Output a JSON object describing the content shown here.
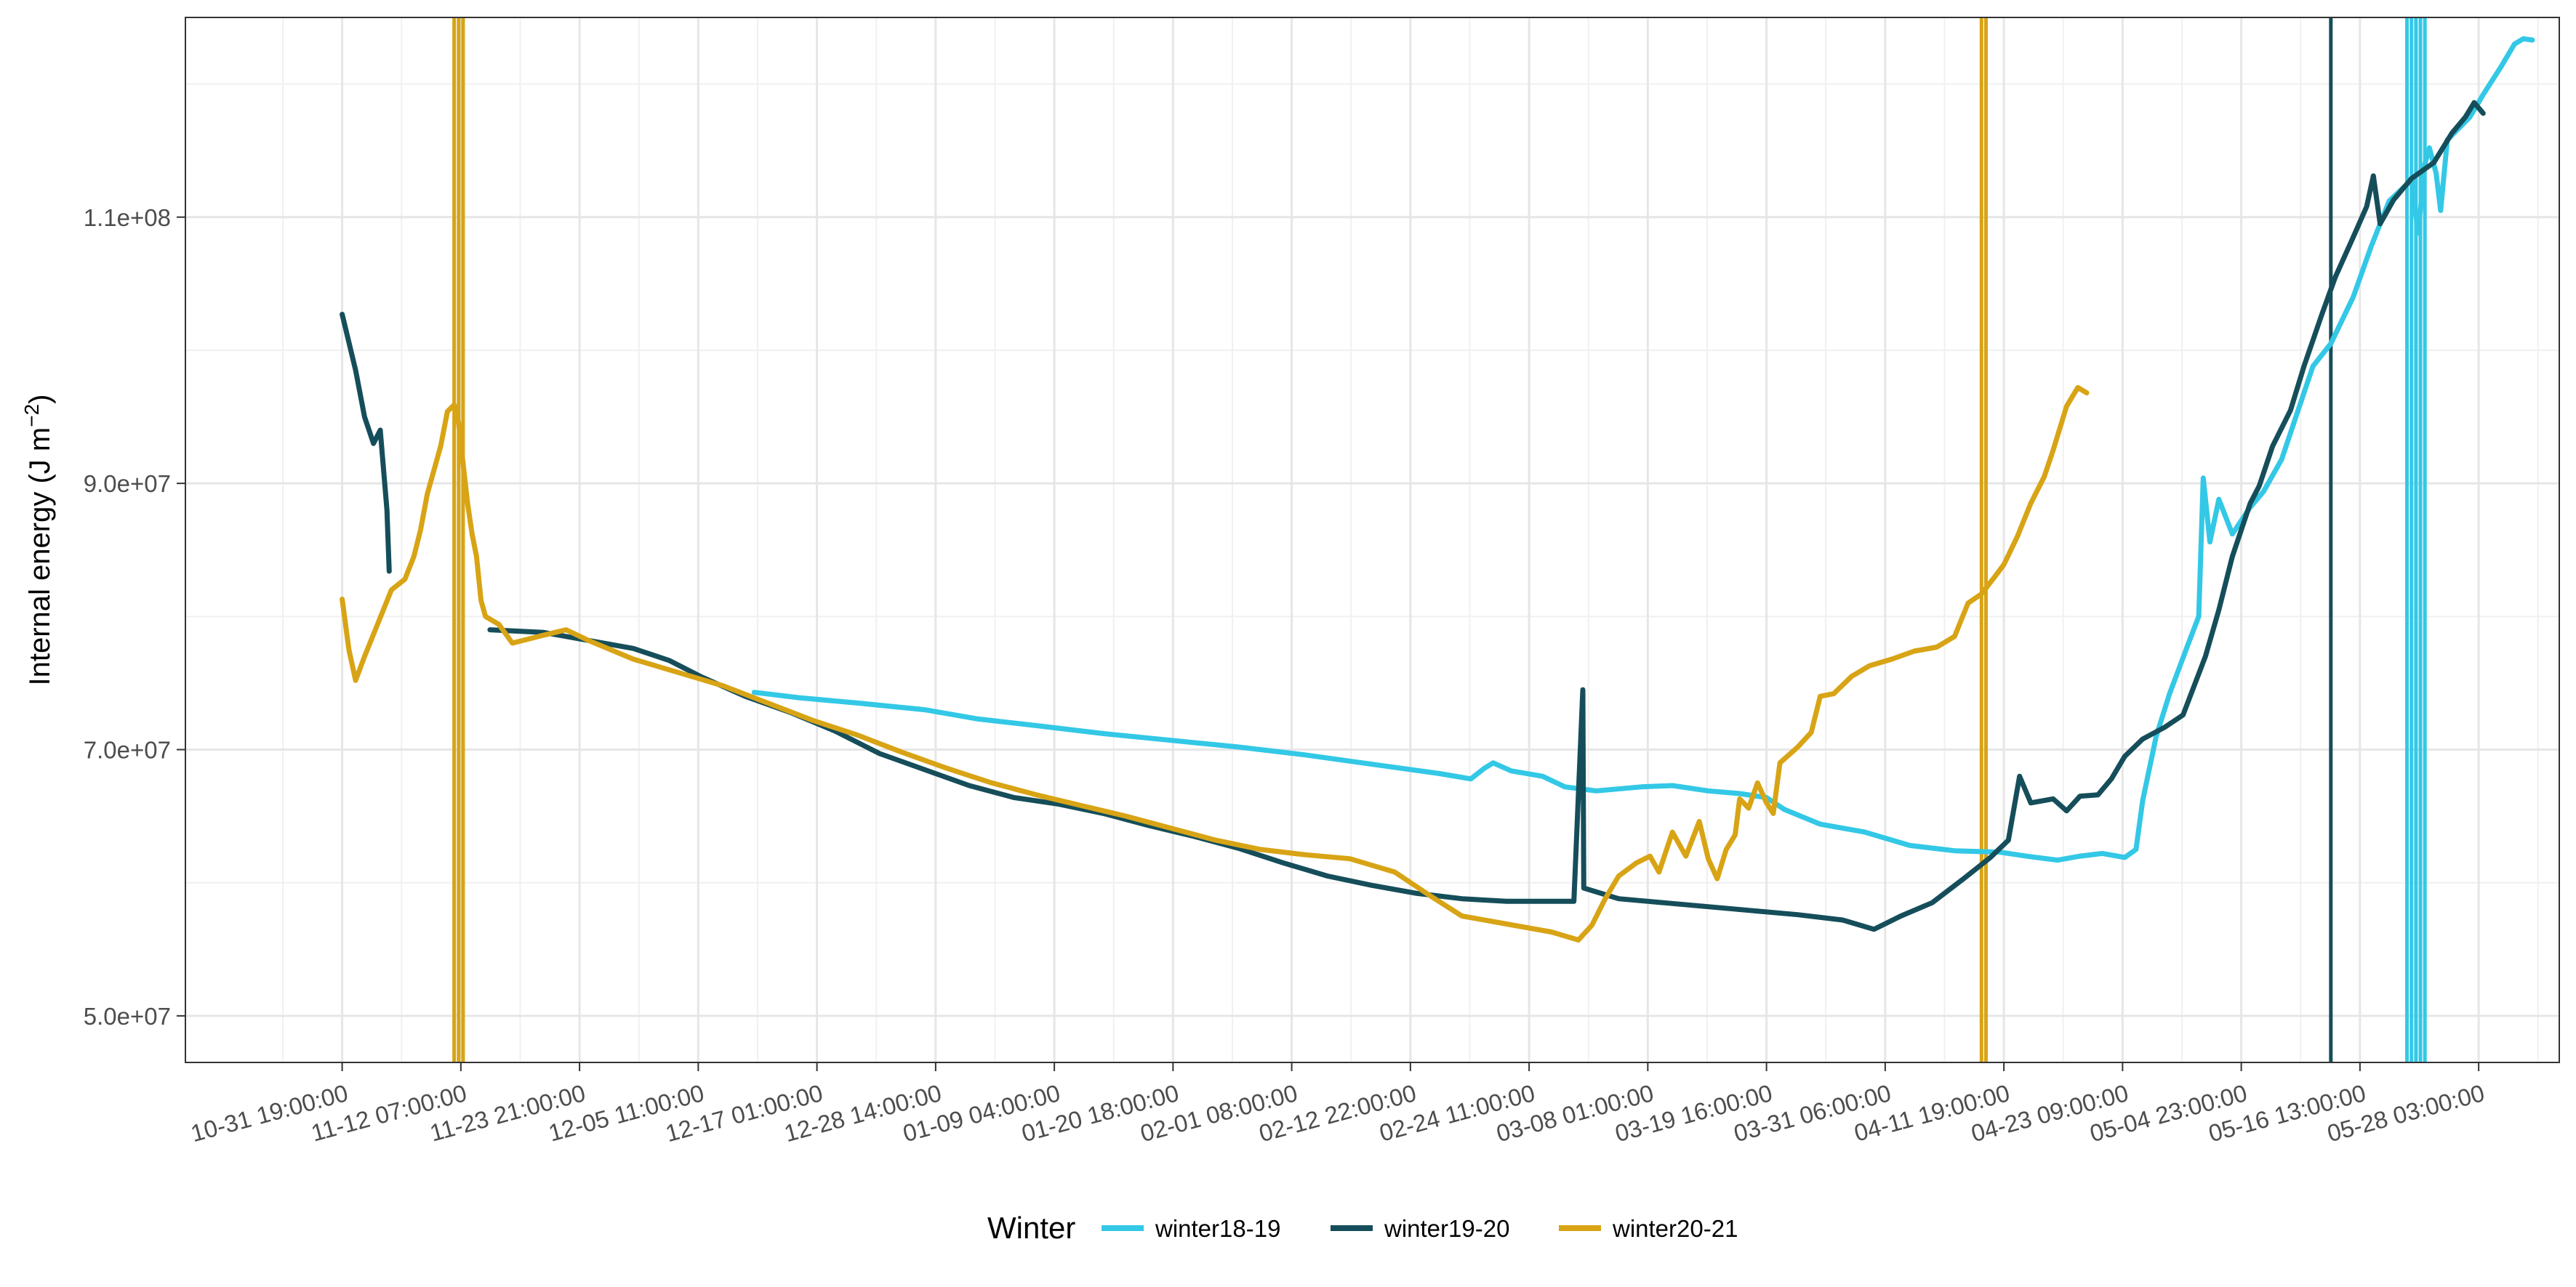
{
  "chart_data": {
    "type": "line",
    "xlabel": "",
    "ylabel": "Internal energy (J m",
    "ylabel_sup": "−2",
    "ylabel_tail": ")",
    "ylim": [
      46500000,
      125000000
    ],
    "xlim": [
      -3.5,
      49.5
    ],
    "x_tick_labels": [
      "10-31 19:00:00",
      "11-12 07:00:00",
      "11-23 21:00:00",
      "12-05 11:00:00",
      "12-17 01:00:00",
      "12-28 14:00:00",
      "01-09 04:00:00",
      "01-20 18:00:00",
      "02-01 08:00:00",
      "02-12 22:00:00",
      "02-24 11:00:00",
      "03-08 01:00:00",
      "03-19 16:00:00",
      "03-31 06:00:00",
      "04-11 19:00:00",
      "04-23 09:00:00",
      "05-04 23:00:00",
      "05-16 13:00:00",
      "05-28 03:00:00"
    ],
    "x_tick_index": [
      0,
      2.65,
      5.3,
      7.95,
      10.6,
      13.25,
      15.9,
      18.55,
      21.2,
      23.85,
      26.5,
      29.15,
      31.8,
      34.45,
      37.1,
      39.75,
      42.4,
      45.05,
      47.7
    ],
    "y_ticks": [
      50000000,
      70000000,
      90000000,
      110000000
    ],
    "y_tick_labels": [
      "5.0e+07",
      "7.0e+07",
      "9.0e+07",
      "1.1e+08"
    ],
    "grid": true,
    "legend": {
      "title": "Winter",
      "position": "bottom"
    },
    "series": [
      {
        "name": "winter18-19",
        "color": "#33c8e6",
        "points": [
          [
            9.2,
            74300000
          ],
          [
            10.2,
            73900000
          ],
          [
            11.5,
            73500000
          ],
          [
            13,
            73000000
          ],
          [
            14.2,
            72300000
          ],
          [
            15.5,
            71800000
          ],
          [
            17,
            71200000
          ],
          [
            18.5,
            70700000
          ],
          [
            20,
            70200000
          ],
          [
            21.5,
            69600000
          ],
          [
            23,
            68900000
          ],
          [
            24.5,
            68200000
          ],
          [
            25.2,
            67800000
          ],
          [
            25.5,
            68600000
          ],
          [
            25.7,
            69000000
          ],
          [
            26.1,
            68400000
          ],
          [
            26.8,
            68000000
          ],
          [
            27.3,
            67200000
          ],
          [
            28,
            66900000
          ],
          [
            29,
            67200000
          ],
          [
            29.7,
            67300000
          ],
          [
            30.5,
            66900000
          ],
          [
            31.2,
            66700000
          ],
          [
            31.8,
            66400000
          ],
          [
            32.2,
            65500000
          ],
          [
            33,
            64400000
          ],
          [
            34,
            63800000
          ],
          [
            35,
            62800000
          ],
          [
            36,
            62400000
          ],
          [
            37,
            62300000
          ],
          [
            37.6,
            62000000
          ],
          [
            38.3,
            61700000
          ],
          [
            38.8,
            62000000
          ],
          [
            39.3,
            62200000
          ],
          [
            39.8,
            61900000
          ],
          [
            40.05,
            62500000
          ],
          [
            40.2,
            66200000
          ],
          [
            40.5,
            71000000
          ],
          [
            40.8,
            74200000
          ],
          [
            41.2,
            77800000
          ],
          [
            41.45,
            80000000
          ],
          [
            41.55,
            90400000
          ],
          [
            41.7,
            85600000
          ],
          [
            41.9,
            88800000
          ],
          [
            42.2,
            86200000
          ],
          [
            42.6,
            88200000
          ],
          [
            42.9,
            89400000
          ],
          [
            43.3,
            91800000
          ],
          [
            43.7,
            95800000
          ],
          [
            44,
            98800000
          ],
          [
            44.4,
            100500000
          ],
          [
            44.9,
            104000000
          ],
          [
            45.3,
            107800000
          ],
          [
            45.7,
            111200000
          ],
          [
            46.2,
            112800000
          ],
          [
            46.35,
            108800000
          ],
          [
            46.5,
            114000000
          ],
          [
            46.6,
            115200000
          ],
          [
            46.75,
            113300000
          ],
          [
            46.85,
            110500000
          ],
          [
            47,
            115800000
          ],
          [
            47.5,
            117500000
          ],
          [
            47.8,
            119200000
          ],
          [
            48.2,
            121300000
          ],
          [
            48.5,
            123000000
          ],
          [
            48.7,
            123400000
          ],
          [
            48.9,
            123300000
          ]
        ],
        "spikes": [
          46.1,
          46.2,
          46.3,
          46.4,
          46.5
        ]
      },
      {
        "name": "winter19-20",
        "color": "#154e5a",
        "points": [
          [
            0,
            102700000
          ],
          [
            0.3,
            98500000
          ],
          [
            0.5,
            95000000
          ],
          [
            0.7,
            93000000
          ],
          [
            0.85,
            94000000
          ],
          [
            1.0,
            88000000
          ],
          [
            1.05,
            83400000
          ],
          [
            null,
            null
          ],
          [
            3.3,
            79000000
          ],
          [
            4.5,
            78800000
          ],
          [
            5.5,
            78200000
          ],
          [
            6.5,
            77600000
          ],
          [
            7.3,
            76700000
          ],
          [
            8,
            75500000
          ],
          [
            9,
            74000000
          ],
          [
            10,
            72800000
          ],
          [
            11,
            71400000
          ],
          [
            12,
            69700000
          ],
          [
            13,
            68500000
          ],
          [
            14,
            67300000
          ],
          [
            15,
            66400000
          ],
          [
            16,
            65900000
          ],
          [
            17,
            65200000
          ],
          [
            18,
            64300000
          ],
          [
            19,
            63500000
          ],
          [
            20,
            62600000
          ],
          [
            21,
            61500000
          ],
          [
            22,
            60500000
          ],
          [
            23,
            59800000
          ],
          [
            24,
            59200000
          ],
          [
            25,
            58800000
          ],
          [
            26,
            58600000
          ],
          [
            26.8,
            58600000
          ],
          [
            27.5,
            58600000
          ],
          [
            27.7,
            74500000
          ],
          [
            27.72,
            59600000
          ],
          [
            28.5,
            58800000
          ],
          [
            29.5,
            58500000
          ],
          [
            30.5,
            58200000
          ],
          [
            31.5,
            57900000
          ],
          [
            32.5,
            57600000
          ],
          [
            33.5,
            57200000
          ],
          [
            34.2,
            56500000
          ],
          [
            34.8,
            57500000
          ],
          [
            35.5,
            58500000
          ],
          [
            36.2,
            60300000
          ],
          [
            36.8,
            61900000
          ],
          [
            37.2,
            63200000
          ],
          [
            37.45,
            68000000
          ],
          [
            37.7,
            66000000
          ],
          [
            38.2,
            66300000
          ],
          [
            38.5,
            65400000
          ],
          [
            38.8,
            66500000
          ],
          [
            39.2,
            66600000
          ],
          [
            39.5,
            67800000
          ],
          [
            39.8,
            69500000
          ],
          [
            40.2,
            70800000
          ],
          [
            40.7,
            71700000
          ],
          [
            41.1,
            72600000
          ],
          [
            41.6,
            77000000
          ],
          [
            41.9,
            80500000
          ],
          [
            42.2,
            84500000
          ],
          [
            42.6,
            88500000
          ],
          [
            42.8,
            89800000
          ],
          [
            43.1,
            92800000
          ],
          [
            43.5,
            95500000
          ],
          [
            43.8,
            98800000
          ],
          [
            44.2,
            102700000
          ],
          [
            44.5,
            105500000
          ],
          [
            44.9,
            108500000
          ],
          [
            45.2,
            110800000
          ],
          [
            45.35,
            113100000
          ],
          [
            45.5,
            109500000
          ],
          [
            45.8,
            111300000
          ],
          [
            46.2,
            112900000
          ],
          [
            46.7,
            114100000
          ],
          [
            47.1,
            116300000
          ],
          [
            47.4,
            117500000
          ],
          [
            47.6,
            118600000
          ],
          [
            47.8,
            117800000
          ]
        ],
        "spikes": [
          44.4
        ]
      },
      {
        "name": "winter20-21",
        "color": "#d8a415",
        "points": [
          [
            0,
            81300000
          ],
          [
            0.15,
            77500000
          ],
          [
            0.3,
            75200000
          ],
          [
            0.5,
            77000000
          ],
          [
            0.8,
            79500000
          ],
          [
            1.1,
            82000000
          ],
          [
            1.4,
            82800000
          ],
          [
            1.6,
            84500000
          ],
          [
            1.75,
            86500000
          ],
          [
            1.9,
            89200000
          ],
          [
            2.1,
            91600000
          ],
          [
            2.2,
            92800000
          ],
          [
            2.35,
            95400000
          ],
          [
            2.5,
            95900000
          ],
          [
            2.6,
            94500000
          ],
          [
            2.7,
            91500000
          ],
          [
            2.8,
            88500000
          ],
          [
            2.9,
            86200000
          ],
          [
            3.0,
            84500000
          ],
          [
            3.1,
            81200000
          ],
          [
            3.2,
            80000000
          ],
          [
            3.5,
            79400000
          ],
          [
            3.8,
            78000000
          ],
          [
            4.5,
            78600000
          ],
          [
            5,
            79000000
          ],
          [
            5.5,
            78200000
          ],
          [
            6.5,
            76800000
          ],
          [
            7.5,
            75800000
          ],
          [
            8.5,
            74800000
          ],
          [
            9.5,
            73500000
          ],
          [
            10.5,
            72200000
          ],
          [
            11.5,
            71100000
          ],
          [
            12.5,
            69800000
          ],
          [
            13.5,
            68600000
          ],
          [
            14.5,
            67500000
          ],
          [
            15.5,
            66600000
          ],
          [
            16.5,
            65800000
          ],
          [
            17.5,
            65000000
          ],
          [
            18.5,
            64100000
          ],
          [
            19.5,
            63200000
          ],
          [
            20.5,
            62500000
          ],
          [
            21.5,
            62100000
          ],
          [
            22.5,
            61800000
          ],
          [
            23.5,
            60800000
          ],
          [
            24.3,
            59000000
          ],
          [
            25,
            57500000
          ],
          [
            26,
            56900000
          ],
          [
            27,
            56300000
          ],
          [
            27.6,
            55700000
          ],
          [
            27.9,
            56800000
          ],
          [
            28.2,
            58800000
          ],
          [
            28.5,
            60500000
          ],
          [
            28.9,
            61500000
          ],
          [
            29.2,
            62000000
          ],
          [
            29.4,
            60800000
          ],
          [
            29.7,
            63800000
          ],
          [
            30.0,
            62000000
          ],
          [
            30.3,
            64600000
          ],
          [
            30.5,
            61800000
          ],
          [
            30.7,
            60300000
          ],
          [
            30.9,
            62500000
          ],
          [
            31.1,
            63600000
          ],
          [
            31.2,
            66300000
          ],
          [
            31.4,
            65600000
          ],
          [
            31.6,
            67500000
          ],
          [
            31.8,
            66000000
          ],
          [
            31.95,
            65200000
          ],
          [
            32.1,
            69000000
          ],
          [
            32.5,
            70200000
          ],
          [
            32.8,
            71300000
          ],
          [
            33.0,
            74000000
          ],
          [
            33.3,
            74200000
          ],
          [
            33.7,
            75500000
          ],
          [
            34.1,
            76300000
          ],
          [
            34.6,
            76800000
          ],
          [
            35.1,
            77400000
          ],
          [
            35.6,
            77700000
          ],
          [
            36.0,
            78500000
          ],
          [
            36.3,
            81000000
          ],
          [
            36.6,
            81700000
          ],
          [
            36.9,
            83000000
          ],
          [
            37.1,
            83900000
          ],
          [
            37.4,
            86000000
          ],
          [
            37.7,
            88500000
          ],
          [
            38.0,
            90500000
          ],
          [
            38.2,
            92500000
          ],
          [
            38.5,
            95800000
          ],
          [
            38.75,
            97200000
          ],
          [
            38.95,
            96800000
          ]
        ],
        "spikes": [
          2.5,
          2.6,
          2.7,
          36.6,
          36.7
        ]
      }
    ]
  }
}
